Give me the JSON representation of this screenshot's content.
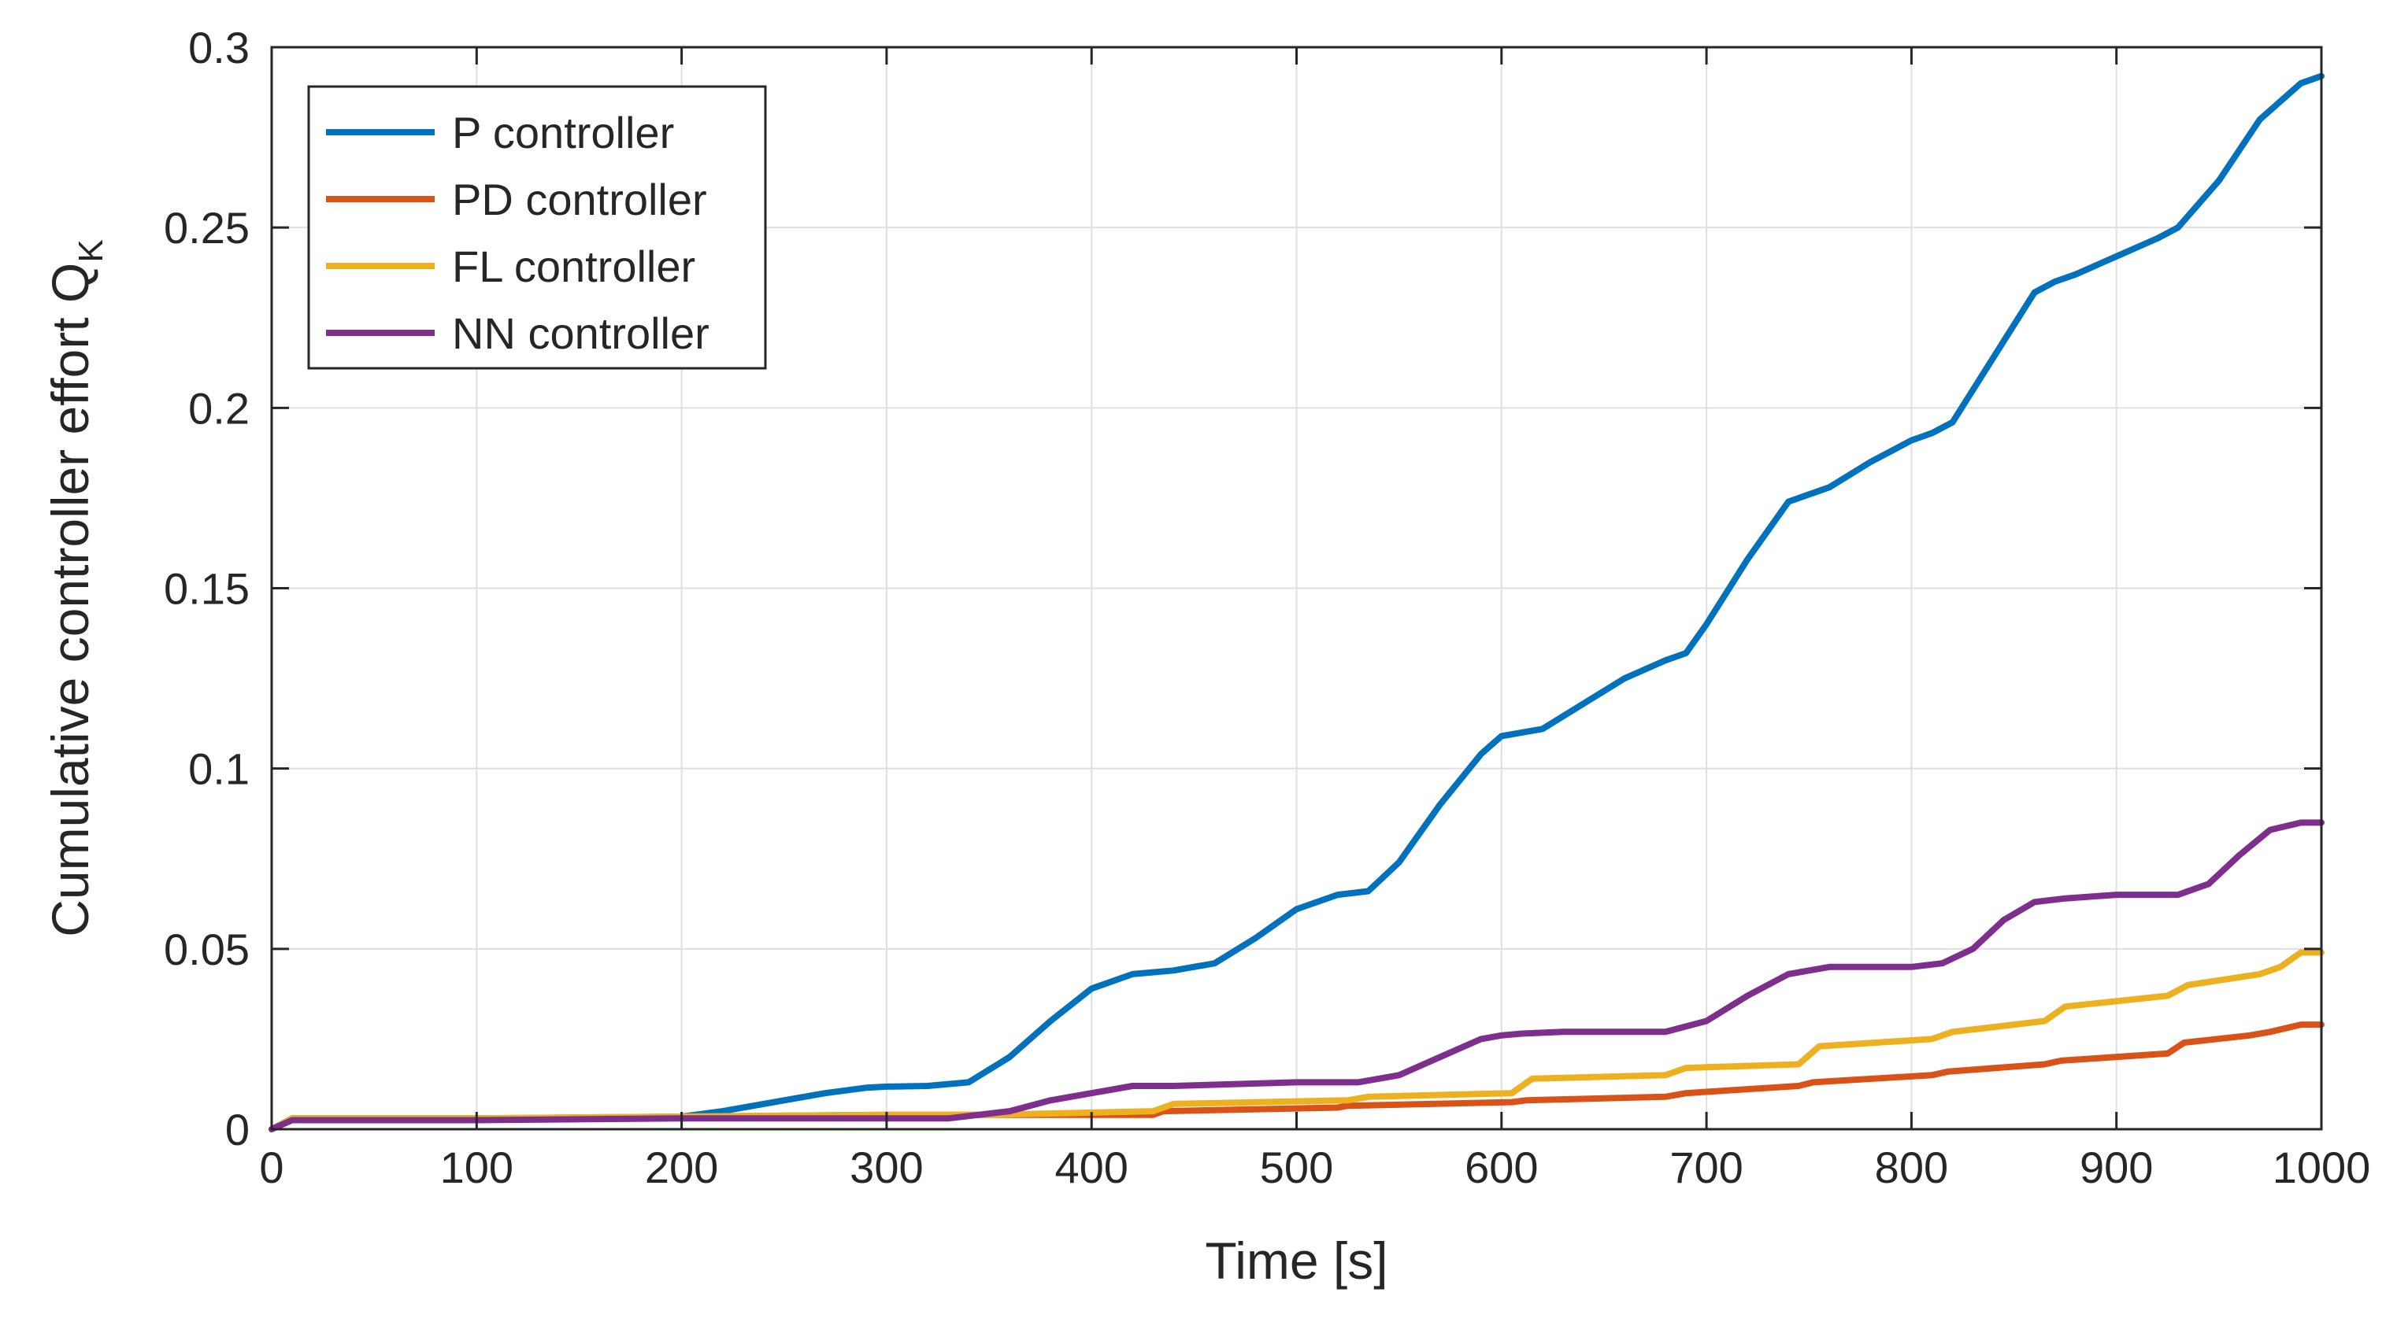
{
  "chart_data": {
    "type": "line",
    "title": "",
    "xlabel": "Time [s]",
    "ylabel": "Cumulative controller effort Q",
    "ylabel_subscript": "K",
    "xlim": [
      0,
      1000
    ],
    "ylim": [
      0,
      0.3
    ],
    "xticks": [
      0,
      100,
      200,
      300,
      400,
      500,
      600,
      700,
      800,
      900,
      1000
    ],
    "xtick_labels": [
      "0",
      "100",
      "200",
      "300",
      "400",
      "500",
      "600",
      "700",
      "800",
      "900",
      "1000"
    ],
    "yticks": [
      0,
      0.05,
      0.1,
      0.15,
      0.2,
      0.25,
      0.3
    ],
    "ytick_labels": [
      "0",
      "0.05",
      "0.1",
      "0.15",
      "0.2",
      "0.25",
      "0.3"
    ],
    "grid": true,
    "legend_position": "top-left",
    "series": [
      {
        "name": "P controller",
        "color": "#0072BD",
        "x": [
          0,
          10,
          50,
          150,
          200,
          220,
          250,
          270,
          290,
          300,
          320,
          340,
          360,
          380,
          400,
          420,
          440,
          460,
          480,
          500,
          520,
          535,
          550,
          570,
          590,
          600,
          620,
          640,
          660,
          680,
          690,
          700,
          720,
          740,
          760,
          780,
          800,
          810,
          820,
          840,
          860,
          870,
          880,
          900,
          920,
          930,
          950,
          970,
          990,
          1000
        ],
        "y": [
          0,
          0.003,
          0.003,
          0.003,
          0.0035,
          0.005,
          0.008,
          0.01,
          0.0115,
          0.0118,
          0.012,
          0.013,
          0.02,
          0.03,
          0.039,
          0.043,
          0.044,
          0.046,
          0.053,
          0.061,
          0.065,
          0.066,
          0.074,
          0.09,
          0.104,
          0.109,
          0.111,
          0.118,
          0.125,
          0.13,
          0.132,
          0.14,
          0.158,
          0.174,
          0.178,
          0.185,
          0.191,
          0.193,
          0.196,
          0.214,
          0.232,
          0.235,
          0.237,
          0.242,
          0.247,
          0.25,
          0.263,
          0.28,
          0.29,
          0.292
        ]
      },
      {
        "name": "PD controller",
        "color": "#D95319",
        "x": [
          0,
          10,
          100,
          200,
          300,
          350,
          430,
          435,
          520,
          525,
          605,
          612,
          680,
          690,
          745,
          752,
          810,
          818,
          865,
          873,
          925,
          933,
          965,
          975,
          990,
          1000
        ],
        "y": [
          0,
          0.003,
          0.003,
          0.0035,
          0.004,
          0.004,
          0.004,
          0.005,
          0.006,
          0.0065,
          0.0075,
          0.008,
          0.009,
          0.01,
          0.012,
          0.013,
          0.015,
          0.016,
          0.018,
          0.019,
          0.021,
          0.024,
          0.026,
          0.027,
          0.029,
          0.029
        ]
      },
      {
        "name": "FL controller",
        "color": "#EDB120",
        "x": [
          0,
          10,
          100,
          200,
          300,
          350,
          430,
          440,
          525,
          535,
          605,
          615,
          680,
          690,
          745,
          755,
          810,
          820,
          865,
          875,
          925,
          935,
          970,
          980,
          990,
          1000
        ],
        "y": [
          0,
          0.003,
          0.003,
          0.0035,
          0.004,
          0.004,
          0.005,
          0.007,
          0.008,
          0.009,
          0.01,
          0.014,
          0.015,
          0.017,
          0.018,
          0.023,
          0.025,
          0.027,
          0.03,
          0.034,
          0.037,
          0.04,
          0.043,
          0.045,
          0.049,
          0.049
        ]
      },
      {
        "name": "NN controller",
        "color": "#7E2F8E",
        "x": [
          0,
          10,
          100,
          200,
          300,
          330,
          360,
          380,
          400,
          420,
          440,
          500,
          530,
          550,
          570,
          590,
          600,
          610,
          630,
          680,
          700,
          720,
          740,
          760,
          800,
          815,
          830,
          845,
          860,
          875,
          900,
          930,
          945,
          960,
          975,
          990,
          1000
        ],
        "y": [
          0,
          0.0025,
          0.0025,
          0.003,
          0.003,
          0.003,
          0.005,
          0.008,
          0.01,
          0.012,
          0.012,
          0.013,
          0.013,
          0.015,
          0.02,
          0.025,
          0.026,
          0.0265,
          0.027,
          0.027,
          0.03,
          0.037,
          0.043,
          0.045,
          0.045,
          0.046,
          0.05,
          0.058,
          0.063,
          0.064,
          0.065,
          0.065,
          0.068,
          0.076,
          0.083,
          0.085,
          0.085
        ]
      }
    ]
  }
}
